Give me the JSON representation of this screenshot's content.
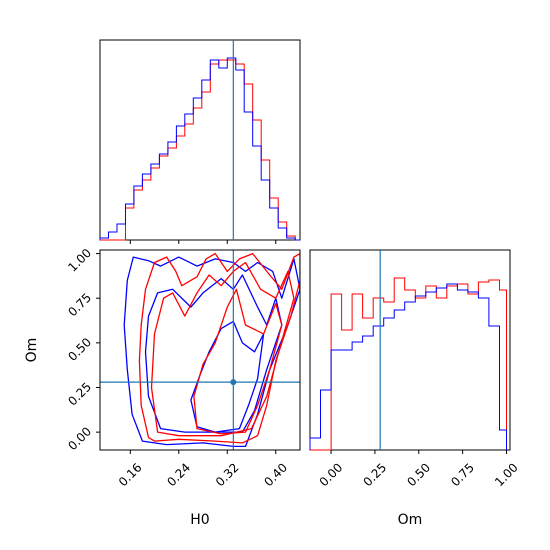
{
  "colors": {
    "series_a": "#ff0000",
    "series_b": "#0000ff",
    "truth": "#1f77b4",
    "frame": "#000000"
  },
  "chart_data": [
    {
      "type": "histogram",
      "panel": "top-left",
      "xlabel": "",
      "xlim": [
        0.11,
        0.44
      ],
      "x_ticks": [
        0.16,
        0.24,
        0.32,
        0.4
      ],
      "truth_x": 0.33,
      "bin_edges": [
        0.11,
        0.124,
        0.138,
        0.152,
        0.166,
        0.18,
        0.194,
        0.208,
        0.222,
        0.236,
        0.25,
        0.264,
        0.278,
        0.292,
        0.306,
        0.32,
        0.334,
        0.348,
        0.362,
        0.376,
        0.39,
        0.404,
        0.418,
        0.432,
        0.44
      ],
      "series": [
        {
          "name": "",
          "color": "#ff0000",
          "counts": [
            0,
            0,
            0,
            0.16,
            0.25,
            0.3,
            0.36,
            0.42,
            0.46,
            0.52,
            0.58,
            0.66,
            0.74,
            0.88,
            0.9,
            0.9,
            0.88,
            0.78,
            0.6,
            0.4,
            0.21,
            0.09,
            0.02,
            0
          ]
        },
        {
          "name": "",
          "color": "#0000ff",
          "counts": [
            0.01,
            0.04,
            0.08,
            0.18,
            0.27,
            0.33,
            0.38,
            0.43,
            0.49,
            0.57,
            0.63,
            0.71,
            0.8,
            0.9,
            0.86,
            0.91,
            0.85,
            0.64,
            0.47,
            0.3,
            0.16,
            0.06,
            0.01,
            0
          ]
        }
      ]
    },
    {
      "type": "contour",
      "panel": "bottom-left",
      "xlabel": "H0",
      "ylabel": "Om",
      "xlim": [
        0.11,
        0.44
      ],
      "ylim": [
        -0.1,
        1.02
      ],
      "x_ticks": [
        "0.16",
        "0.24",
        "0.32",
        "0.40"
      ],
      "y_ticks": [
        "0.00",
        "0.25",
        "0.50",
        "0.75",
        "1.00"
      ],
      "truth_x": 0.33,
      "truth_y": 0.28,
      "series": [
        {
          "name": "",
          "color": "#ff0000",
          "levels": 3
        },
        {
          "name": "",
          "color": "#0000ff",
          "levels": 3
        }
      ]
    },
    {
      "type": "histogram",
      "panel": "bottom-right",
      "xlabel": "Om",
      "xlim": [
        -0.12,
        1.02
      ],
      "x_ticks": [
        "0.00",
        "0.25",
        "0.50",
        "0.75",
        "1.00"
      ],
      "truth_x": 0.28,
      "bin_edges": [
        -0.12,
        -0.06,
        0,
        0.06,
        0.12,
        0.18,
        0.24,
        0.3,
        0.36,
        0.42,
        0.48,
        0.54,
        0.6,
        0.66,
        0.72,
        0.78,
        0.84,
        0.9,
        0.96,
        1.0
      ],
      "series": [
        {
          "name": "",
          "color": "#ff0000",
          "counts": [
            0,
            0,
            0.78,
            0.6,
            0.78,
            0.66,
            0.76,
            0.74,
            0.86,
            0.8,
            0.76,
            0.82,
            0.76,
            0.82,
            0.83,
            0.78,
            0.84,
            0.85,
            0.8
          ]
        },
        {
          "name": "",
          "color": "#0000ff",
          "counts": [
            0.06,
            0.3,
            0.5,
            0.5,
            0.54,
            0.57,
            0.62,
            0.66,
            0.7,
            0.74,
            0.77,
            0.79,
            0.81,
            0.83,
            0.8,
            0.79,
            0.76,
            0.62,
            0.1
          ]
        }
      ]
    }
  ]
}
